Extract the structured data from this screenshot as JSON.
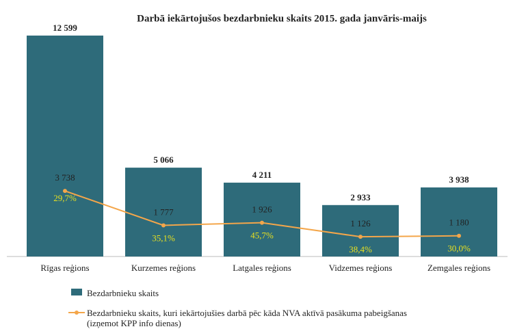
{
  "chart_data": {
    "type": "bar-line",
    "title": "Darbā iekārtojušos bezdarbnieku skaits 2015. gada  janvāris-maijs",
    "categories": [
      "Rīgas reģions",
      "Kurzemes reģions",
      "Latgales reģions",
      "Vidzemes reģions",
      "Zemgales reģions"
    ],
    "series": [
      {
        "name": "Bezdarbnieku skaits",
        "type": "bar",
        "color": "#2e6b7a",
        "values": [
          12599,
          5066,
          4211,
          2933,
          3938
        ],
        "value_labels": [
          "12 599",
          "5 066",
          "4 211",
          "2 933",
          "3 938"
        ]
      },
      {
        "name": "Bezdarbnieku skaits, kuri  iekārtojušies darbā pēc kāda NVA aktīvā pasākuma pabeigšanas\n(izņemot KPP info dienas)",
        "type": "line",
        "color": "#f4a64a",
        "values": [
          3738,
          1777,
          1926,
          1126,
          1180
        ],
        "value_labels": [
          "3 738",
          "1 777",
          "1 926",
          "1 126",
          "1 180"
        ],
        "annotations": [
          "29,7%",
          "35,1%",
          "45,7%",
          "38,4%",
          "30,0%"
        ],
        "annotation_color": "#e8e020"
      }
    ]
  }
}
